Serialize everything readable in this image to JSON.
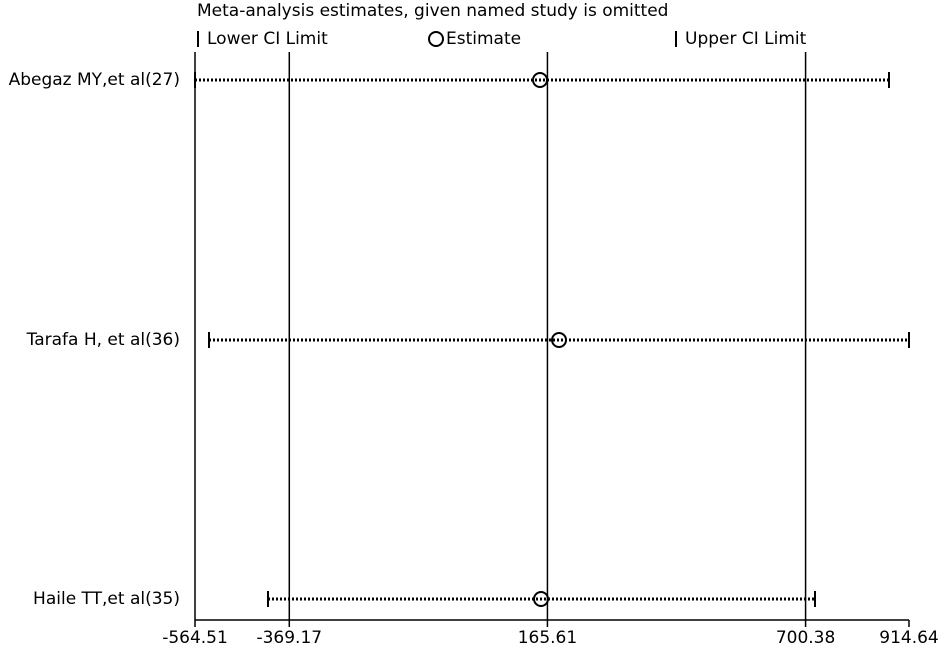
{
  "chart_data": {
    "type": "forest",
    "title": "Meta-analysis estimates, given named study is omitted",
    "categories": [
      "Abegaz MY,et al(27)",
      "Tarafa H, et al(36)",
      "Haile TT,et al(35)"
    ],
    "series": [
      {
        "name": "Lower CI Limit",
        "values": [
          -564.51,
          -535.5,
          -413.3
        ]
      },
      {
        "name": "Estimate",
        "values": [
          150.2,
          189.6,
          152.3
        ]
      },
      {
        "name": "Upper CI Limit",
        "values": [
          873.2,
          914.64,
          719.9
        ]
      }
    ],
    "xlim": [
      -564.51,
      914.64
    ],
    "xticks": [
      -564.51,
      -369.17,
      165.61,
      700.38,
      914.64
    ],
    "color": "#000000"
  }
}
